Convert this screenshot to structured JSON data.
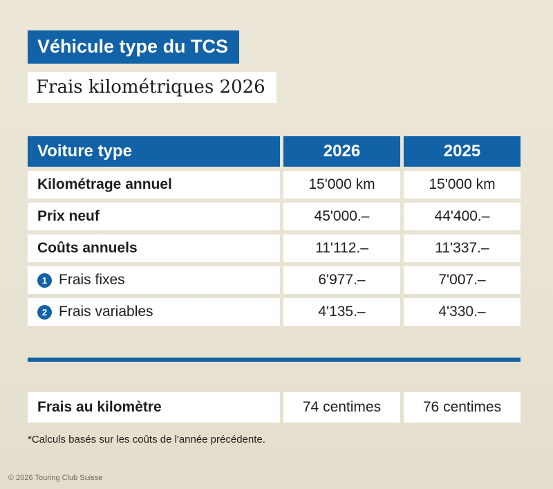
{
  "page": {
    "title_badge": "Véhicule type du TCS",
    "subtitle_badge": "Frais kilométriques 2026",
    "footnote": "*Calculs basés sur les coûts de l'année précédente.",
    "copyright": "© 2026 Touring Club Suisse"
  },
  "colors": {
    "accent_blue": "#1162a7",
    "background_beige": "#e8e2d2",
    "cell_white": "#ffffff",
    "text_dark": "#1d1d1b"
  },
  "table": {
    "header": {
      "col0": "Voiture type",
      "col1": "2026",
      "col2": "2025"
    },
    "rows": [
      {
        "label": "Kilométrage annuel",
        "v2026": "15'000 km",
        "v2025": "15'000 km"
      },
      {
        "label": "Prix neuf",
        "v2026": "45'000.–",
        "v2025": "44'400.–"
      },
      {
        "label": "Coûts annuels",
        "v2026": "11'112.–",
        "v2025": "11'337.–"
      },
      {
        "label": "Frais fixes",
        "badge": "1",
        "v2026": "6'977.–",
        "v2025": "7'007.–"
      },
      {
        "label": "Frais variables",
        "badge": "2",
        "v2026": "4'135.–",
        "v2025": "4'330.–"
      }
    ],
    "summary_row": {
      "label": "Frais au kilomètre",
      "v2026": "74 centimes",
      "v2025": "76 centimes"
    }
  },
  "chart_data": {
    "type": "table",
    "title": "Frais kilométriques 2026",
    "subtitle": "Véhicule type du TCS",
    "columns": [
      "Voiture type",
      "2026",
      "2025"
    ],
    "rows": [
      [
        "Kilométrage annuel",
        "15'000 km",
        "15'000 km"
      ],
      [
        "Prix neuf",
        "45'000.–",
        "44'400.–"
      ],
      [
        "Coûts annuels",
        "11'112.–",
        "11'337.–"
      ],
      [
        "Frais fixes",
        "6'977.–",
        "7'007.–"
      ],
      [
        "Frais variables",
        "4'135.–",
        "4'330.–"
      ],
      [
        "Frais au kilomètre",
        "74 centimes",
        "76 centimes"
      ]
    ],
    "footnote": "*Calculs basés sur les coûts de l'année précédente."
  }
}
